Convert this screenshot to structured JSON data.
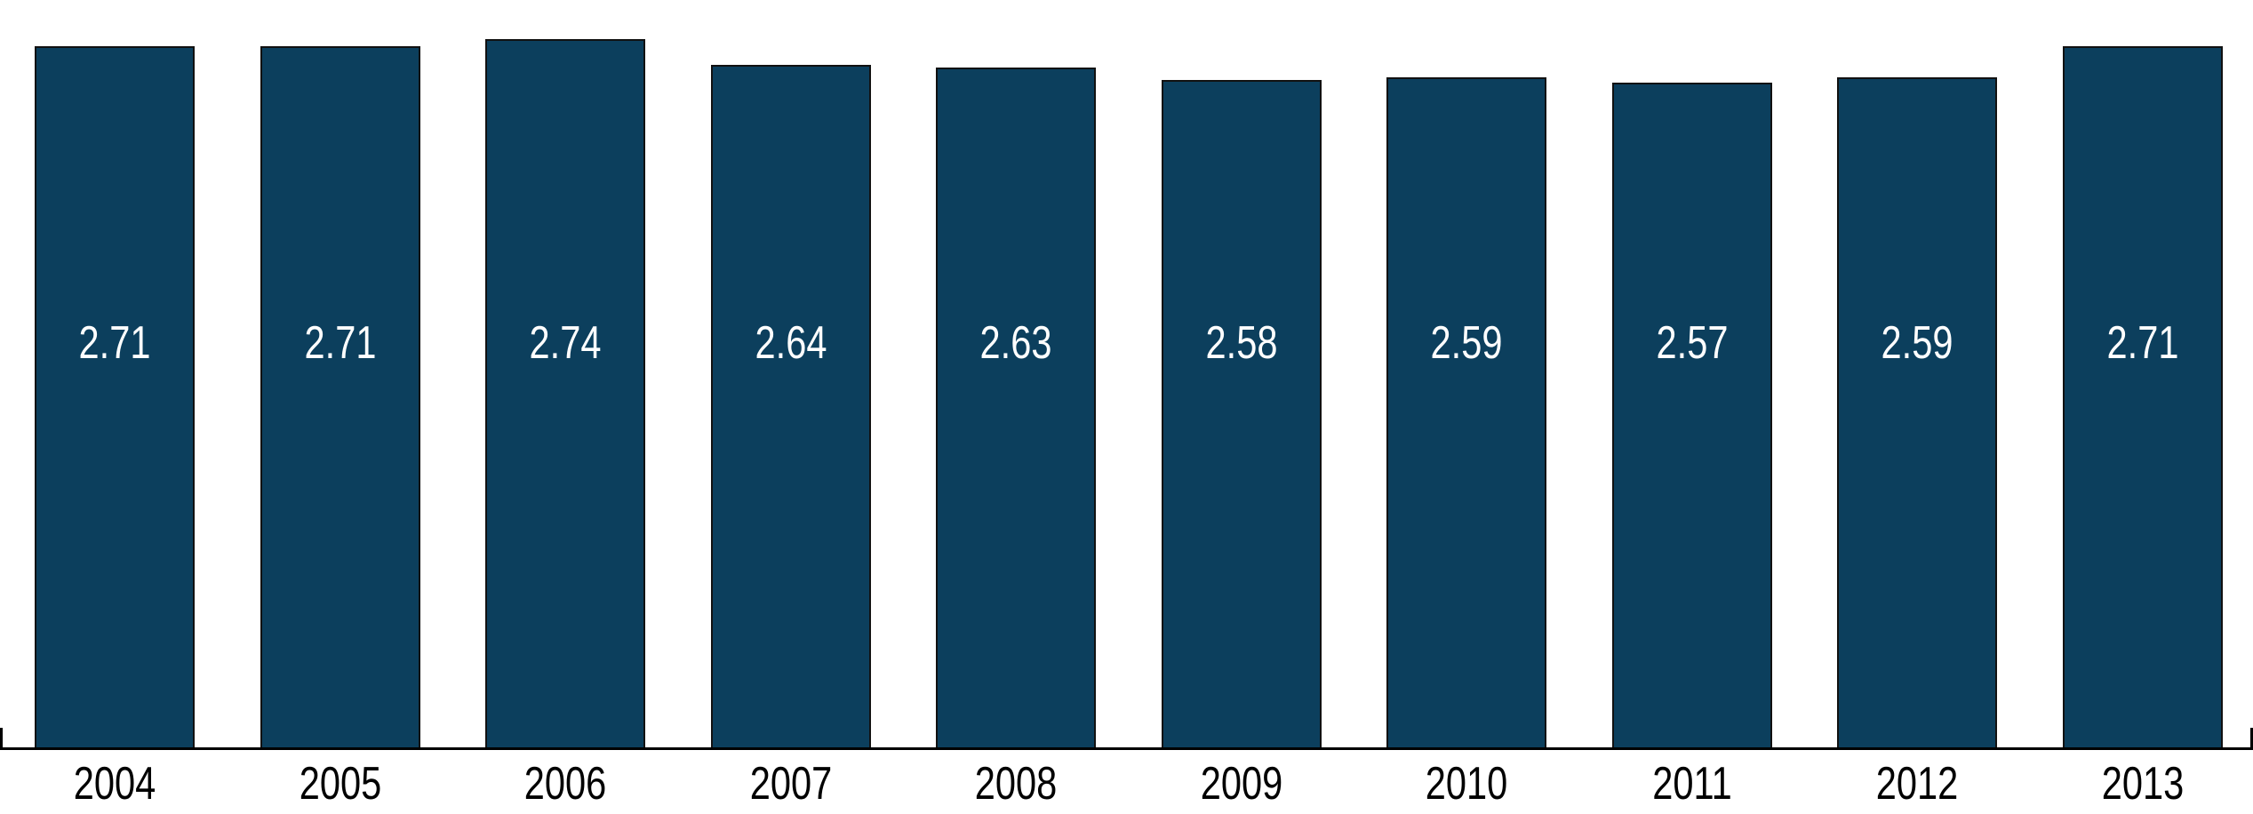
{
  "chart_data": {
    "type": "bar",
    "categories": [
      "2004",
      "2005",
      "2006",
      "2007",
      "2008",
      "2009",
      "2010",
      "2011",
      "2012",
      "2013"
    ],
    "values": [
      2.71,
      2.71,
      2.74,
      2.64,
      2.63,
      2.58,
      2.59,
      2.57,
      2.59,
      2.71
    ],
    "series_name": "",
    "title": "",
    "xlabel": "",
    "ylabel": "",
    "ylim": [
      0,
      2.89
    ],
    "grid": false,
    "legend": false,
    "value_labels_shown": true,
    "value_label_format": "2-decimals",
    "colors": {
      "bar_fill": "#0C3F5D",
      "bar_border": "#111111",
      "value_label": "#FFFFFF",
      "tick_label": "#000000",
      "axis": "#000000",
      "background": "#FFFFFF"
    }
  }
}
